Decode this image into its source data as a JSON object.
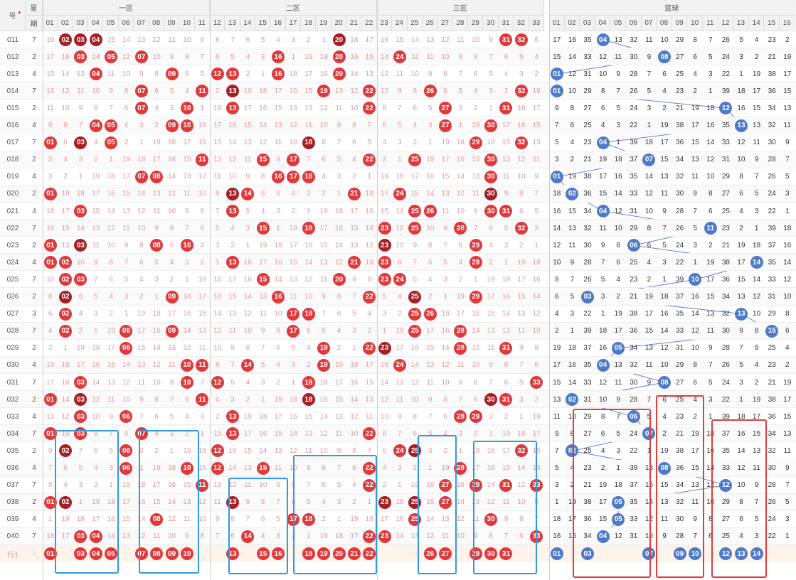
{
  "header": {
    "left": [
      "号",
      "星"
    ],
    "week_label": "期",
    "zones": [
      "一区",
      "二区",
      "三区",
      "蓝球"
    ],
    "red_cols": [
      "01",
      "02",
      "03",
      "04",
      "05",
      "06",
      "07",
      "08",
      "09",
      "10",
      "11",
      "12",
      "13",
      "14",
      "15",
      "16",
      "17",
      "18",
      "19",
      "20",
      "21",
      "22",
      "23",
      "24",
      "25",
      "26",
      "27",
      "28",
      "29",
      "30",
      "31",
      "32",
      "33"
    ],
    "blue_cols": [
      "01",
      "02",
      "03",
      "04",
      "05",
      "06",
      "07",
      "08",
      "09",
      "10",
      "11",
      "12",
      "13",
      "14",
      "15",
      "16"
    ]
  },
  "periods": [
    {
      "id": "011",
      "wk": "7",
      "red": [
        2,
        3,
        4,
        20,
        31,
        32
      ],
      "blue": 4
    },
    {
      "id": "012",
      "wk": "2",
      "red": [
        3,
        5,
        7,
        16,
        20,
        24
      ],
      "blue": 8
    },
    {
      "id": "013",
      "wk": "4",
      "red": [
        4,
        9,
        12,
        13,
        16,
        20
      ],
      "blue": 1
    },
    {
      "id": "014",
      "wk": "7",
      "red": [
        7,
        11,
        13,
        19,
        22,
        26,
        32
      ],
      "blue": 1
    },
    {
      "id": "015",
      "wk": "2",
      "red": [
        7,
        10,
        13,
        22,
        27,
        31
      ],
      "blue": 12
    },
    {
      "id": "016",
      "wk": "4",
      "red": [
        4,
        5,
        9,
        10,
        27,
        30
      ],
      "blue": 13
    },
    {
      "id": "017",
      "wk": "7",
      "red": [
        1,
        3,
        5,
        18,
        29,
        32
      ],
      "blue": 4
    },
    {
      "id": "018",
      "wk": "2",
      "red": [
        11,
        15,
        17,
        22,
        25,
        30
      ],
      "blue": 7
    },
    {
      "id": "019",
      "wk": "4",
      "red": [
        7,
        8,
        16,
        17,
        18,
        30
      ],
      "blue": 1
    },
    {
      "id": "020",
      "wk": "2",
      "red": [
        1,
        13,
        14,
        21,
        24,
        30
      ],
      "blue": 2
    },
    {
      "id": "021",
      "wk": "4",
      "red": [
        3,
        13,
        25,
        26,
        30,
        31
      ],
      "blue": 4
    },
    {
      "id": "022",
      "wk": "7",
      "red": [
        15,
        18,
        23,
        25,
        28,
        32
      ],
      "blue": 11
    },
    {
      "id": "023",
      "wk": "2",
      "red": [
        1,
        3,
        8,
        10,
        23,
        29
      ],
      "blue": 6
    },
    {
      "id": "024",
      "wk": "4",
      "red": [
        1,
        2,
        13,
        21,
        23,
        29
      ],
      "blue": 14
    },
    {
      "id": "025",
      "wk": "7",
      "red": [
        2,
        3,
        15,
        20,
        23,
        24
      ],
      "blue": 10
    },
    {
      "id": "026",
      "wk": "2",
      "red": [
        2,
        9,
        16,
        22,
        25,
        29
      ],
      "blue": 3
    },
    {
      "id": "027",
      "wk": "3",
      "red": [
        2,
        17,
        18,
        25,
        26
      ],
      "blue": 13
    },
    {
      "id": "028",
      "wk": "7",
      "red": [
        2,
        6,
        9,
        17,
        25,
        28
      ],
      "blue": 15
    },
    {
      "id": "029",
      "wk": "2",
      "red": [
        6,
        19,
        22,
        23,
        28,
        31
      ],
      "blue": 5
    },
    {
      "id": "030",
      "wk": "4",
      "red": [
        10,
        11,
        14,
        19,
        24
      ],
      "blue": 4
    },
    {
      "id": "031",
      "wk": "7",
      "red": [
        3,
        10,
        12,
        18,
        33
      ],
      "blue": 8
    },
    {
      "id": "032",
      "wk": "2",
      "red": [
        1,
        3,
        11,
        18,
        31,
        30
      ],
      "blue": 2
    },
    {
      "id": "033",
      "wk": "4",
      "red": [
        3,
        6,
        13,
        28,
        29
      ],
      "blue": 6
    },
    {
      "id": "034",
      "wk": "7",
      "red": [
        1,
        3,
        7,
        13,
        22
      ],
      "blue": 7
    },
    {
      "id": "035",
      "wk": "2",
      "red": [
        2,
        6,
        12,
        24,
        25,
        32
      ],
      "blue": 2
    },
    {
      "id": "036",
      "wk": "4",
      "red": [
        6,
        10,
        12,
        15,
        22,
        28
      ],
      "blue": 8
    },
    {
      "id": "037",
      "wk": "7",
      "red": [
        11,
        22,
        27,
        29,
        31,
        33
      ],
      "blue": 12
    },
    {
      "id": "038",
      "wk": "2",
      "red": [
        1,
        2,
        13,
        23,
        25,
        27
      ],
      "blue": 5
    },
    {
      "id": "039",
      "wk": "4",
      "red": [
        8,
        17,
        18,
        25,
        30
      ],
      "blue": 5
    },
    {
      "id": "040",
      "wk": "7",
      "red": [
        3,
        4,
        14,
        22,
        23,
        33
      ],
      "blue": 4
    }
  ],
  "footer": {
    "label": "行1",
    "dash": "-",
    "red": [
      1,
      3,
      4,
      5,
      7,
      8,
      9,
      10,
      13,
      15,
      16,
      18,
      19,
      20,
      21,
      22,
      26,
      27,
      29,
      30,
      31
    ],
    "blue": [
      1,
      3,
      7,
      9,
      10,
      12,
      13,
      14
    ]
  },
  "colors": {
    "red": "#e0393c",
    "dark": "#a52025",
    "blue": "#4f79c9",
    "box_blue": "#2e9be0",
    "box_red": "#e23c3c"
  }
}
